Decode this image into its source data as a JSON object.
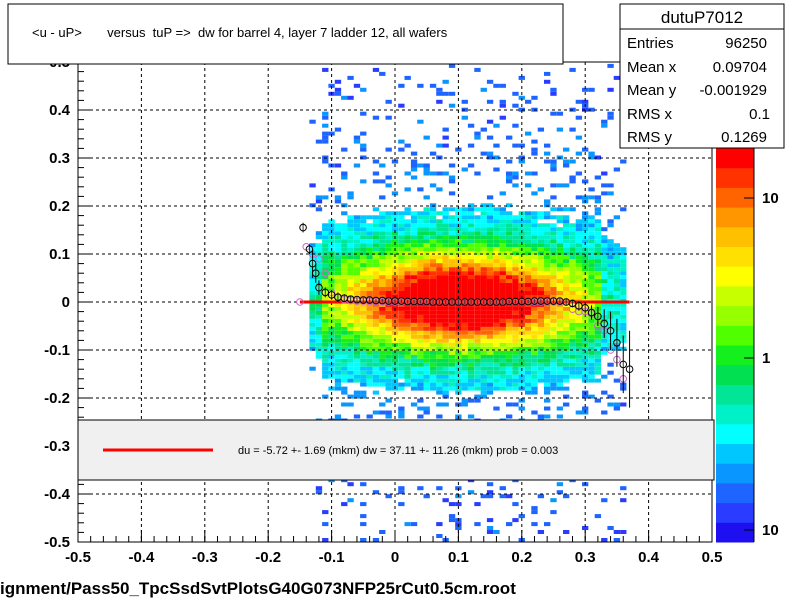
{
  "chart_data": {
    "type": "heatmap",
    "title": "<u - uP>       versus  tuP =>  dw for barrel 4, layer 7 ladder 12, all wafers",
    "xlim": [
      -0.5,
      0.5
    ],
    "ylim": [
      -0.5,
      0.5
    ],
    "x_ticks": [
      "-0.5",
      "-0.4",
      "-0.3",
      "-0.2",
      "-0.1",
      "0",
      "0.1",
      "0.2",
      "0.3",
      "0.4",
      "0.5"
    ],
    "y_ticks": [
      "-0.5",
      "-0.4",
      "-0.3",
      "-0.2",
      "-0.1",
      "0",
      "0.1",
      "0.2",
      "0.3",
      "0.4",
      "0.5"
    ],
    "grid": true,
    "color_scale": "log",
    "colorbar_labels": [
      "10",
      "1",
      "10"
    ],
    "stats": {
      "name": "dutuP7012",
      "rows": [
        {
          "label": "Entries",
          "value": "96250"
        },
        {
          "label": "Mean x",
          "value": "0.09704"
        },
        {
          "label": "Mean y",
          "value": "-0.001929"
        },
        {
          "label": "RMS x",
          "value": "0.1"
        },
        {
          "label": "RMS y",
          "value": "0.1269"
        }
      ]
    },
    "legend": {
      "entries": [
        "du =   -5.72 +-  1.69 (mkm) dw =   37.11 +- 11.26 (mkm) prob = 0.003"
      ],
      "placement": "lower-center"
    },
    "fit_line": {
      "color": "#ff0000",
      "x": [
        -0.15,
        0.37
      ],
      "y": [
        0.0,
        0.0
      ]
    },
    "profile_black": {
      "x": [
        -0.145,
        -0.135,
        -0.13,
        -0.125,
        -0.12,
        -0.11,
        -0.1,
        -0.09,
        -0.08,
        -0.07,
        -0.06,
        -0.05,
        -0.04,
        -0.03,
        -0.02,
        -0.01,
        0.0,
        0.01,
        0.02,
        0.03,
        0.04,
        0.05,
        0.06,
        0.07,
        0.08,
        0.09,
        0.1,
        0.11,
        0.12,
        0.13,
        0.14,
        0.15,
        0.16,
        0.17,
        0.18,
        0.19,
        0.2,
        0.21,
        0.22,
        0.23,
        0.24,
        0.25,
        0.26,
        0.27,
        0.28,
        0.29,
        0.3,
        0.31,
        0.32,
        0.33,
        0.34,
        0.35,
        0.36,
        0.37
      ],
      "y": [
        0.155,
        0.11,
        0.08,
        0.06,
        0.03,
        0.02,
        0.015,
        0.01,
        0.008,
        0.006,
        0.005,
        0.004,
        0.004,
        0.003,
        0.003,
        0.002,
        0.002,
        0.002,
        0.001,
        0.001,
        0.001,
        0.001,
        0.0,
        0.0,
        0.0,
        0.0,
        0.0,
        0.0,
        0.0,
        0.0,
        0.0,
        0.0,
        0.0,
        0.0,
        0.001,
        0.001,
        0.001,
        0.001,
        0.002,
        0.002,
        0.002,
        0.002,
        0.002,
        0.0,
        -0.003,
        -0.008,
        -0.012,
        -0.022,
        -0.03,
        -0.045,
        -0.06,
        -0.085,
        -0.13,
        -0.14
      ],
      "err": [
        0.01,
        0.01,
        0.03,
        0.02,
        0.015,
        0.01,
        0.01,
        0.01,
        0.008,
        0.006,
        0.005,
        0.005,
        0.005,
        0.004,
        0.004,
        0.004,
        0.004,
        0.004,
        0.004,
        0.004,
        0.004,
        0.004,
        0.004,
        0.004,
        0.004,
        0.004,
        0.004,
        0.004,
        0.004,
        0.004,
        0.004,
        0.004,
        0.004,
        0.004,
        0.004,
        0.004,
        0.004,
        0.004,
        0.004,
        0.004,
        0.004,
        0.005,
        0.005,
        0.006,
        0.008,
        0.01,
        0.012,
        0.015,
        0.02,
        0.03,
        0.04,
        0.05,
        0.06,
        0.08
      ]
    },
    "profile_pink": {
      "x": [
        -0.15,
        -0.14,
        -0.13,
        -0.12,
        -0.11,
        -0.1,
        -0.09,
        -0.08,
        -0.07,
        -0.06,
        -0.05,
        -0.04,
        -0.03,
        -0.02,
        -0.01,
        0.0,
        0.01,
        0.02,
        0.03,
        0.04,
        0.05,
        0.06,
        0.07,
        0.08,
        0.09,
        0.1,
        0.11,
        0.12,
        0.13,
        0.14,
        0.15,
        0.16,
        0.17,
        0.18,
        0.19,
        0.2,
        0.21,
        0.22,
        0.23,
        0.24,
        0.25,
        0.26,
        0.27,
        0.28,
        0.29,
        0.3,
        0.31,
        0.32,
        0.33,
        0.34,
        0.35,
        0.36
      ],
      "y": [
        0.0,
        0.115,
        0.1,
        0.09,
        0.06,
        0.02,
        0.01,
        0.005,
        0.003,
        0.002,
        0.002,
        0.001,
        0.001,
        0.001,
        0.0,
        0.0,
        0.0,
        0.0,
        0.0,
        0.0,
        0.0,
        0.0,
        0.0,
        0.0,
        0.0,
        0.0,
        0.0,
        0.0,
        0.0,
        0.0,
        0.0,
        0.0,
        0.0,
        0.0,
        0.0,
        0.0,
        0.0,
        0.0,
        0.0,
        0.0,
        0.0,
        0.0,
        0.0,
        -0.015,
        -0.02,
        -0.02,
        -0.025,
        -0.05,
        -0.06,
        -0.1,
        -0.12,
        -0.16
      ]
    }
  },
  "footer": {
    "filename": "ignment/Pass50_TpcSsdSvtPlotsG40G073NFP25rCut0.5cm.root"
  },
  "colors": {
    "frame": "#000000",
    "panel_fill": "#f0f0f0",
    "fit": "#ff0000",
    "profile_black": "#000000",
    "profile_pink": "#cc66cc"
  }
}
